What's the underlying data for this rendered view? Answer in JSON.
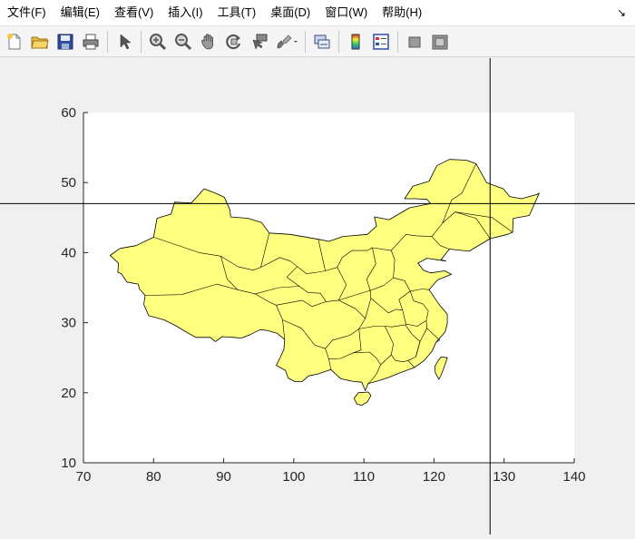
{
  "menu": {
    "items": [
      "文件(F)",
      "编辑(E)",
      "查看(V)",
      "插入(I)",
      "工具(T)",
      "桌面(D)",
      "窗口(W)",
      "帮助(H)"
    ],
    "dock_glyph": "↘"
  },
  "toolbar": {
    "icons": [
      "new-figure-icon",
      "open-file-icon",
      "save-icon",
      "print-icon",
      "edit-plot-arrow-icon",
      "zoom-in-icon",
      "zoom-out-icon",
      "pan-hand-icon",
      "rotate-3d-icon",
      "data-cursor-icon",
      "brush-icon",
      "link-plot-icon",
      "colorbar-icon",
      "legend-icon",
      "hide-plot-tools-icon",
      "show-plot-tools-icon"
    ]
  },
  "chart_data": {
    "type": "map",
    "title": "",
    "xlabel": "",
    "ylabel": "",
    "xlim": [
      70,
      140
    ],
    "ylim": [
      10,
      60
    ],
    "xticks": [
      70,
      80,
      90,
      100,
      110,
      120,
      130,
      140
    ],
    "yticks": [
      10,
      20,
      30,
      40,
      50,
      60
    ],
    "xtick_labels": [
      "70",
      "80",
      "90",
      "100",
      "110",
      "120",
      "130",
      "140"
    ],
    "ytick_labels": [
      "10",
      "20",
      "30",
      "40",
      "50",
      "60"
    ],
    "fill_color": "#ffff80",
    "edge_color": "#000000",
    "crosshair": {
      "x": 128.0,
      "y": 47.0
    },
    "grid": false,
    "regions": [
      {
        "name": "mainland",
        "points": [
          [
            73.8,
            39.6
          ],
          [
            75.2,
            40.6
          ],
          [
            77.5,
            41.0
          ],
          [
            80.0,
            42.2
          ],
          [
            80.5,
            44.9
          ],
          [
            82.5,
            45.5
          ],
          [
            83.0,
            47.2
          ],
          [
            85.4,
            47.1
          ],
          [
            87.2,
            49.1
          ],
          [
            88.8,
            48.5
          ],
          [
            90.1,
            47.9
          ],
          [
            90.9,
            46.1
          ],
          [
            91.0,
            45.1
          ],
          [
            93.5,
            44.9
          ],
          [
            95.4,
            44.3
          ],
          [
            96.5,
            42.8
          ],
          [
            99.5,
            42.6
          ],
          [
            103.5,
            41.9
          ],
          [
            105.0,
            41.6
          ],
          [
            107.0,
            42.3
          ],
          [
            110.5,
            42.6
          ],
          [
            111.8,
            43.8
          ],
          [
            111.5,
            45.1
          ],
          [
            113.6,
            44.7
          ],
          [
            116.5,
            46.4
          ],
          [
            119.5,
            47.0
          ],
          [
            119.0,
            47.6
          ],
          [
            117.4,
            47.7
          ],
          [
            115.8,
            47.7
          ],
          [
            117.0,
            49.5
          ],
          [
            119.3,
            50.2
          ],
          [
            120.4,
            52.4
          ],
          [
            122.2,
            53.3
          ],
          [
            124.6,
            53.2
          ],
          [
            126.0,
            52.7
          ],
          [
            127.5,
            50.0
          ],
          [
            129.9,
            49.1
          ],
          [
            130.8,
            48.0
          ],
          [
            132.5,
            47.7
          ],
          [
            134.7,
            48.3
          ],
          [
            135.0,
            48.5
          ],
          [
            133.6,
            45.3
          ],
          [
            131.3,
            44.9
          ],
          [
            131.2,
            42.9
          ],
          [
            130.5,
            42.6
          ],
          [
            128.0,
            42.0
          ],
          [
            125.0,
            40.2
          ],
          [
            122.2,
            40.5
          ],
          [
            121.0,
            39.0
          ],
          [
            121.7,
            38.8
          ],
          [
            119.0,
            39.2
          ],
          [
            117.7,
            38.5
          ],
          [
            118.5,
            37.5
          ],
          [
            119.5,
            37.1
          ],
          [
            121.5,
            37.4
          ],
          [
            122.5,
            36.9
          ],
          [
            120.5,
            36.1
          ],
          [
            119.3,
            34.7
          ],
          [
            120.8,
            32.5
          ],
          [
            121.9,
            31.2
          ],
          [
            121.9,
            29.9
          ],
          [
            121.6,
            28.7
          ],
          [
            120.3,
            27.2
          ],
          [
            119.7,
            25.9
          ],
          [
            118.6,
            24.6
          ],
          [
            117.2,
            23.6
          ],
          [
            115.0,
            22.8
          ],
          [
            113.6,
            22.2
          ],
          [
            112.0,
            21.7
          ],
          [
            110.6,
            21.3
          ],
          [
            110.2,
            20.3
          ],
          [
            109.7,
            21.5
          ],
          [
            108.5,
            21.6
          ],
          [
            106.7,
            22.0
          ],
          [
            105.3,
            23.3
          ],
          [
            103.5,
            22.7
          ],
          [
            102.1,
            22.4
          ],
          [
            101.2,
            21.6
          ],
          [
            100.1,
            21.6
          ],
          [
            99.2,
            22.1
          ],
          [
            98.8,
            23.2
          ],
          [
            97.5,
            23.9
          ],
          [
            98.0,
            24.9
          ],
          [
            98.6,
            26.2
          ],
          [
            98.7,
            27.6
          ],
          [
            97.6,
            28.5
          ],
          [
            96.2,
            28.9
          ],
          [
            95.2,
            29.0
          ],
          [
            93.8,
            28.3
          ],
          [
            92.5,
            27.8
          ],
          [
            91.4,
            27.9
          ],
          [
            89.8,
            28.0
          ],
          [
            88.8,
            27.3
          ],
          [
            88.1,
            27.9
          ],
          [
            86.0,
            27.9
          ],
          [
            84.6,
            28.7
          ],
          [
            83.3,
            29.5
          ],
          [
            81.5,
            30.4
          ],
          [
            79.3,
            31.0
          ],
          [
            78.6,
            32.6
          ],
          [
            78.8,
            33.9
          ],
          [
            78.0,
            34.8
          ],
          [
            77.8,
            35.5
          ],
          [
            76.2,
            35.8
          ],
          [
            75.4,
            37.0
          ],
          [
            74.9,
            37.2
          ],
          [
            75.0,
            38.5
          ],
          [
            73.8,
            39.6
          ]
        ]
      },
      {
        "name": "hainan",
        "points": [
          [
            108.6,
            19.2
          ],
          [
            109.2,
            20.0
          ],
          [
            110.6,
            20.1
          ],
          [
            111.0,
            19.6
          ],
          [
            110.5,
            18.7
          ],
          [
            109.7,
            18.2
          ],
          [
            109.0,
            18.4
          ],
          [
            108.6,
            19.2
          ]
        ]
      },
      {
        "name": "taiwan",
        "points": [
          [
            121.0,
            25.1
          ],
          [
            121.9,
            25.0
          ],
          [
            121.5,
            23.8
          ],
          [
            121.0,
            22.5
          ],
          [
            120.7,
            21.9
          ],
          [
            120.2,
            22.8
          ],
          [
            120.1,
            23.7
          ],
          [
            120.6,
            24.6
          ],
          [
            121.0,
            25.1
          ]
        ]
      }
    ],
    "internal_borders": [
      [
        [
          80.0,
          42.2
        ],
        [
          86.5,
          40.0
        ],
        [
          89.6,
          39.5
        ],
        [
          92.0,
          38.0
        ],
        [
          94.2,
          37.5
        ],
        [
          95.3,
          37.9
        ],
        [
          96.5,
          42.8
        ]
      ],
      [
        [
          78.8,
          33.9
        ],
        [
          84.0,
          34.0
        ],
        [
          89.0,
          35.5
        ],
        [
          92.0,
          34.7
        ],
        [
          94.5,
          34.1
        ],
        [
          96.4,
          33.0
        ],
        [
          97.5,
          32.5
        ],
        [
          98.4,
          30.4
        ],
        [
          98.7,
          27.6
        ]
      ],
      [
        [
          89.6,
          39.5
        ],
        [
          90.5,
          36.2
        ],
        [
          92.0,
          34.7
        ]
      ],
      [
        [
          95.3,
          37.9
        ],
        [
          98.0,
          39.3
        ],
        [
          99.5,
          38.8
        ],
        [
          100.5,
          38.0
        ],
        [
          101.8,
          37.0
        ],
        [
          103.4,
          37.2
        ],
        [
          104.5,
          37.4
        ]
      ],
      [
        [
          100.5,
          38.0
        ],
        [
          99.0,
          36.5
        ],
        [
          100.8,
          35.2
        ],
        [
          102.0,
          34.3
        ],
        [
          103.8,
          34.2
        ],
        [
          104.6,
          33.0
        ],
        [
          106.4,
          33.2
        ],
        [
          108.0,
          33.7
        ],
        [
          110.9,
          34.6
        ]
      ],
      [
        [
          94.5,
          34.1
        ],
        [
          97.8,
          35.0
        ],
        [
          100.8,
          35.2
        ]
      ],
      [
        [
          97.5,
          32.5
        ],
        [
          101.2,
          33.2
        ],
        [
          102.6,
          32.3
        ],
        [
          104.6,
          33.0
        ]
      ],
      [
        [
          98.4,
          30.4
        ],
        [
          101.1,
          29.2
        ],
        [
          103.0,
          26.8
        ],
        [
          104.5,
          26.3
        ],
        [
          105.5,
          27.5
        ],
        [
          108.0,
          28.2
        ],
        [
          109.3,
          29.1
        ],
        [
          110.2,
          30.6
        ],
        [
          108.8,
          32.0
        ],
        [
          106.4,
          33.2
        ]
      ],
      [
        [
          104.5,
          26.3
        ],
        [
          105.0,
          24.8
        ],
        [
          106.7,
          24.9
        ],
        [
          108.5,
          25.7
        ],
        [
          109.6,
          26.1
        ],
        [
          109.3,
          29.1
        ]
      ],
      [
        [
          105.0,
          24.8
        ],
        [
          105.3,
          23.3
        ]
      ],
      [
        [
          108.5,
          25.7
        ],
        [
          110.8,
          25.8
        ],
        [
          111.8,
          24.9
        ],
        [
          112.4,
          24.0
        ],
        [
          111.8,
          22.7
        ],
        [
          111.2,
          21.9
        ],
        [
          110.6,
          21.3
        ]
      ],
      [
        [
          103.5,
          41.9
        ],
        [
          104.5,
          37.4
        ],
        [
          106.2,
          37.9
        ],
        [
          106.9,
          39.3
        ],
        [
          108.3,
          40.3
        ],
        [
          110.5,
          40.3
        ],
        [
          111.2,
          40.7
        ],
        [
          111.7,
          38.4
        ],
        [
          110.4,
          36.2
        ],
        [
          110.9,
          34.6
        ],
        [
          111.0,
          33.5
        ],
        [
          110.2,
          30.6
        ]
      ],
      [
        [
          106.2,
          37.9
        ],
        [
          107.5,
          35.4
        ],
        [
          106.4,
          33.2
        ]
      ],
      [
        [
          111.2,
          40.7
        ],
        [
          113.9,
          40.3
        ],
        [
          114.4,
          39.0
        ],
        [
          114.2,
          36.4
        ],
        [
          112.8,
          35.3
        ],
        [
          110.9,
          34.6
        ]
      ],
      [
        [
          113.9,
          40.3
        ],
        [
          116.0,
          42.6
        ],
        [
          117.5,
          42.4
        ],
        [
          119.7,
          42.3
        ],
        [
          120.9,
          41.0
        ],
        [
          122.2,
          40.5
        ]
      ],
      [
        [
          119.7,
          42.3
        ],
        [
          121.2,
          44.2
        ],
        [
          123.0,
          45.8
        ],
        [
          126.0,
          44.9
        ],
        [
          128.0,
          42.0
        ]
      ],
      [
        [
          121.2,
          44.2
        ],
        [
          122.5,
          47.5
        ],
        [
          124.0,
          48.5
        ],
        [
          126.0,
          52.7
        ]
      ],
      [
        [
          123.0,
          45.8
        ],
        [
          128.3,
          45.0
        ],
        [
          131.2,
          42.9
        ]
      ],
      [
        [
          114.2,
          36.4
        ],
        [
          115.8,
          36.0
        ],
        [
          116.6,
          34.5
        ],
        [
          118.3,
          34.8
        ],
        [
          119.3,
          34.7
        ]
      ],
      [
        [
          116.6,
          34.5
        ],
        [
          115.0,
          33.3
        ],
        [
          115.5,
          31.8
        ],
        [
          114.6,
          31.9
        ],
        [
          113.5,
          31.4
        ],
        [
          111.0,
          33.5
        ]
      ],
      [
        [
          116.6,
          34.5
        ],
        [
          117.1,
          33.1
        ],
        [
          118.4,
          32.7
        ],
        [
          119.2,
          31.7
        ],
        [
          118.9,
          30.3
        ],
        [
          119.0,
          29.2
        ],
        [
          120.8,
          27.5
        ],
        [
          120.3,
          27.2
        ]
      ],
      [
        [
          115.5,
          31.8
        ],
        [
          116.0,
          29.8
        ],
        [
          117.6,
          29.5
        ],
        [
          118.9,
          30.3
        ]
      ],
      [
        [
          109.3,
          29.1
        ],
        [
          111.5,
          29.5
        ],
        [
          113.0,
          29.5
        ],
        [
          114.0,
          29.4
        ],
        [
          115.9,
          29.7
        ],
        [
          116.0,
          29.8
        ]
      ],
      [
        [
          113.0,
          29.5
        ],
        [
          114.2,
          27.0
        ],
        [
          113.9,
          25.4
        ],
        [
          112.4,
          24.0
        ]
      ],
      [
        [
          115.9,
          29.7
        ],
        [
          116.9,
          28.3
        ],
        [
          118.0,
          27.3
        ],
        [
          117.4,
          25.1
        ],
        [
          116.3,
          24.6
        ],
        [
          115.6,
          24.4
        ],
        [
          114.5,
          24.6
        ],
        [
          113.9,
          25.4
        ]
      ],
      [
        [
          117.4,
          25.1
        ],
        [
          118.0,
          27.3
        ],
        [
          119.0,
          29.2
        ]
      ],
      [
        [
          116.3,
          24.6
        ],
        [
          117.2,
          23.6
        ]
      ]
    ]
  }
}
